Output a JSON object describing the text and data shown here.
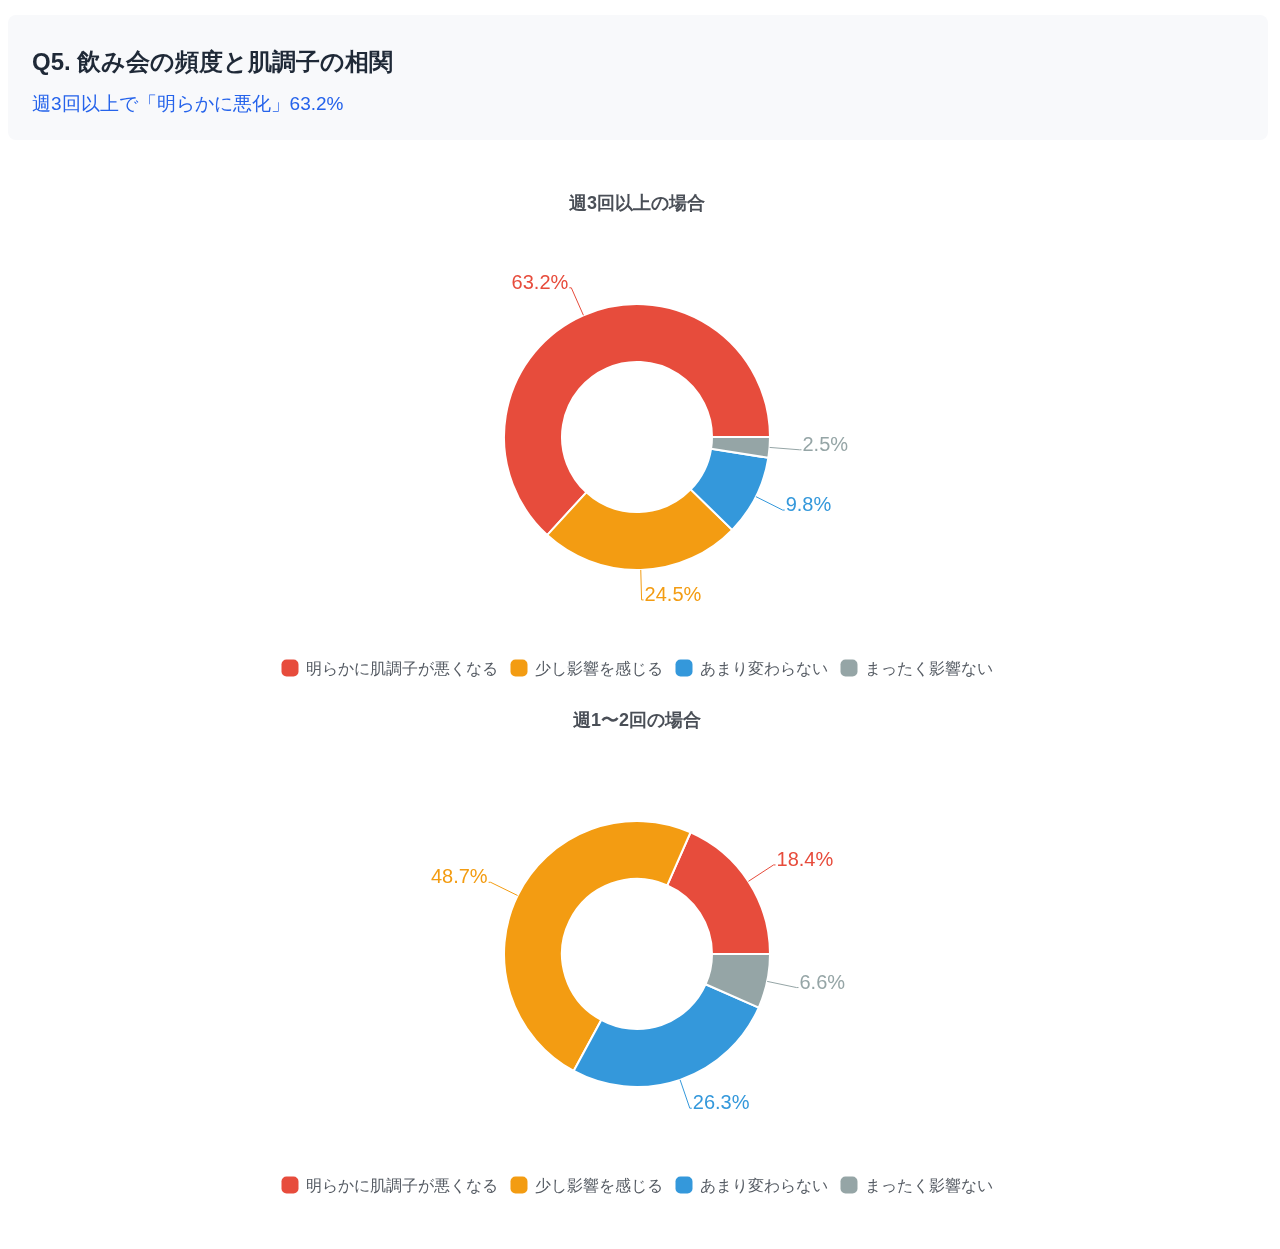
{
  "chart_data": [
    {
      "type": "other",
      "title": "Q5. 飲み会の頻度と肌調子の相関",
      "subtitle": "週3回以上で「明らかに悪化」63.2%"
    },
    {
      "type": "donut",
      "title": "週3回以上の場合",
      "categories": [
        "明らかに肌調子が悪くなる",
        "少し影響を感じる",
        "あまり変わらない",
        "まったく影響ない"
      ],
      "values": [
        63.2,
        24.5,
        9.8,
        2.5
      ],
      "colors": [
        "#e74c3c",
        "#f39c12",
        "#3498db",
        "#95a5a6"
      ],
      "value_labels": [
        "63.2%",
        "24.5%",
        "9.8%",
        "2.5%"
      ],
      "legend": "bottom"
    },
    {
      "type": "donut",
      "title": "週1〜2回の場合",
      "categories": [
        "明らかに肌調子が悪くなる",
        "少し影響を感じる",
        "あまり変わらない",
        "まったく影響ない"
      ],
      "values": [
        18.4,
        48.7,
        26.3,
        6.6
      ],
      "colors": [
        "#e74c3c",
        "#f39c12",
        "#3498db",
        "#95a5a6"
      ],
      "value_labels": [
        "18.4%",
        "48.7%",
        "26.3%",
        "6.6%"
      ],
      "legend": "bottom"
    }
  ]
}
